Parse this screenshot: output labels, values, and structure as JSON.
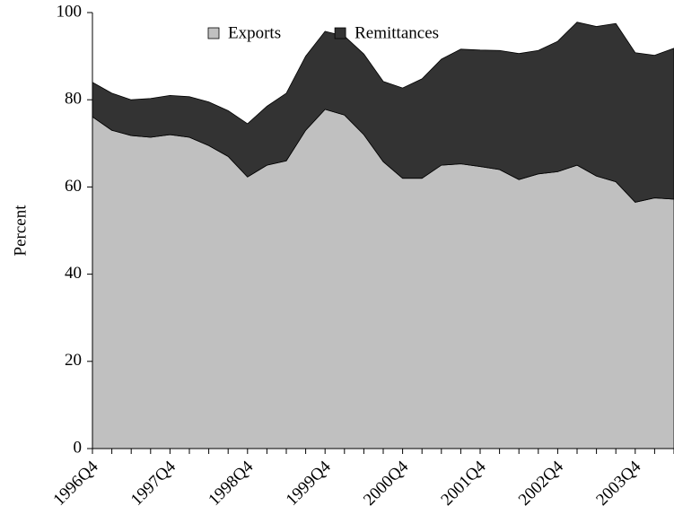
{
  "chart_data": {
    "type": "stacked-area",
    "y_label": "Percent",
    "categories": [
      "1996Q4",
      null,
      null,
      null,
      "1997Q4",
      null,
      null,
      null,
      "1998Q4",
      null,
      null,
      null,
      "1999Q4",
      null,
      null,
      null,
      "2000Q4",
      null,
      null,
      null,
      "2001Q4",
      null,
      null,
      null,
      "2002Q4",
      null,
      null,
      null,
      "2003Q4",
      null,
      null
    ],
    "series": [
      {
        "name": "Exports",
        "color": "#c0c0c0",
        "values": [
          76.1,
          73,
          71.8,
          71.4,
          72,
          71.4,
          69.5,
          67,
          62.3,
          65,
          66,
          73,
          77.8,
          76.5,
          72,
          65.8,
          62,
          62,
          65,
          65.3,
          64.7,
          64,
          61.7,
          63,
          63.5,
          65,
          62.5,
          61.2,
          56.5,
          57.5,
          57.2
        ]
      },
      {
        "name": "Remittances",
        "color": "#333333",
        "values": [
          7.9,
          8.5,
          8.2,
          8.9,
          9,
          9.3,
          10,
          10.5,
          12.2,
          13.5,
          15.5,
          17,
          17.9,
          18.1,
          18.5,
          18.4,
          20.7,
          22.8,
          24.3,
          26.3,
          26.7,
          27.3,
          28.9,
          28.3,
          29.9,
          32.8,
          34.3,
          36.3,
          34.3,
          32.7,
          34.6
        ]
      }
    ],
    "ylim": [
      0,
      100
    ],
    "yticks": [
      0,
      20,
      40,
      60,
      80,
      100
    ],
    "legend": "top"
  }
}
